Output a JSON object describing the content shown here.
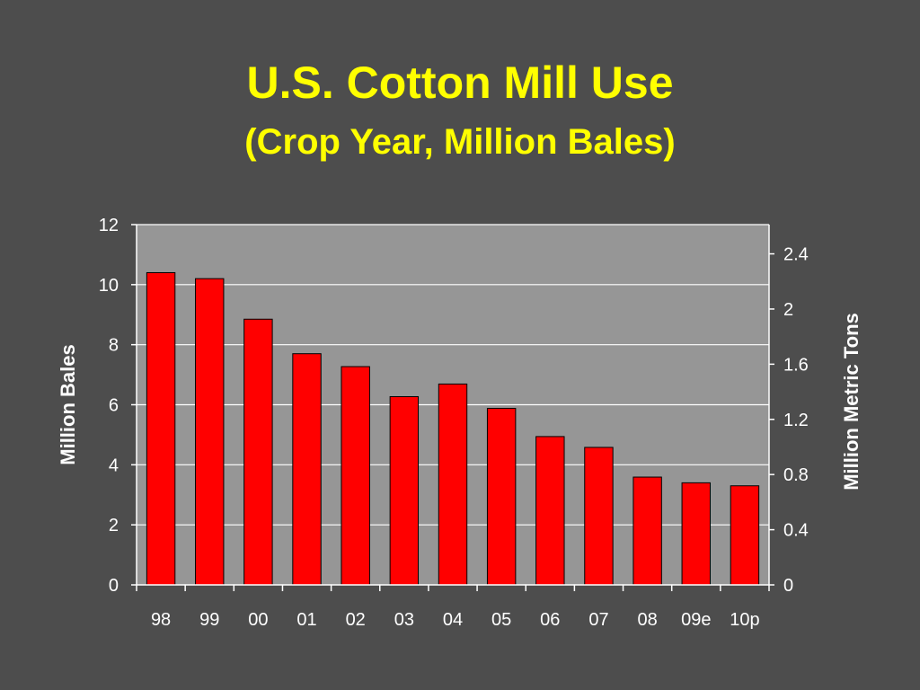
{
  "slide": {
    "title": "U.S. Cotton Mill Use",
    "subtitle": "(Crop Year, Million Bales)"
  },
  "colors": {
    "background": "#4d4d4d",
    "plot_area": "#969696",
    "bar_fill": "#ff0000",
    "title": "#ffff00",
    "text": "#ffffff"
  },
  "chart_data": {
    "type": "bar",
    "title": "U.S. Cotton Mill Use",
    "subtitle": "(Crop Year, Million Bales)",
    "categories": [
      "98",
      "99",
      "00",
      "01",
      "02",
      "03",
      "04",
      "05",
      "06",
      "07",
      "08",
      "09e",
      "10p"
    ],
    "values": [
      10.4,
      10.2,
      8.85,
      7.7,
      7.27,
      6.27,
      6.69,
      5.88,
      4.94,
      4.58,
      3.59,
      3.4,
      3.3
    ],
    "xlabel": "",
    "ylabel": "Million Bales",
    "y2label": "Million Metric Tons",
    "ylim": [
      0,
      12
    ],
    "yticks": [
      0,
      2,
      4,
      6,
      8,
      10,
      12
    ],
    "y2lim": [
      0,
      2.612
    ],
    "y2ticks": [
      "0",
      "0.4",
      "0.8",
      "1.2",
      "1.6",
      "2",
      "2.4"
    ],
    "y2tick_values": [
      0,
      0.4,
      0.8,
      1.2,
      1.6,
      2.0,
      2.4
    ],
    "grid": true,
    "legend": "none"
  }
}
